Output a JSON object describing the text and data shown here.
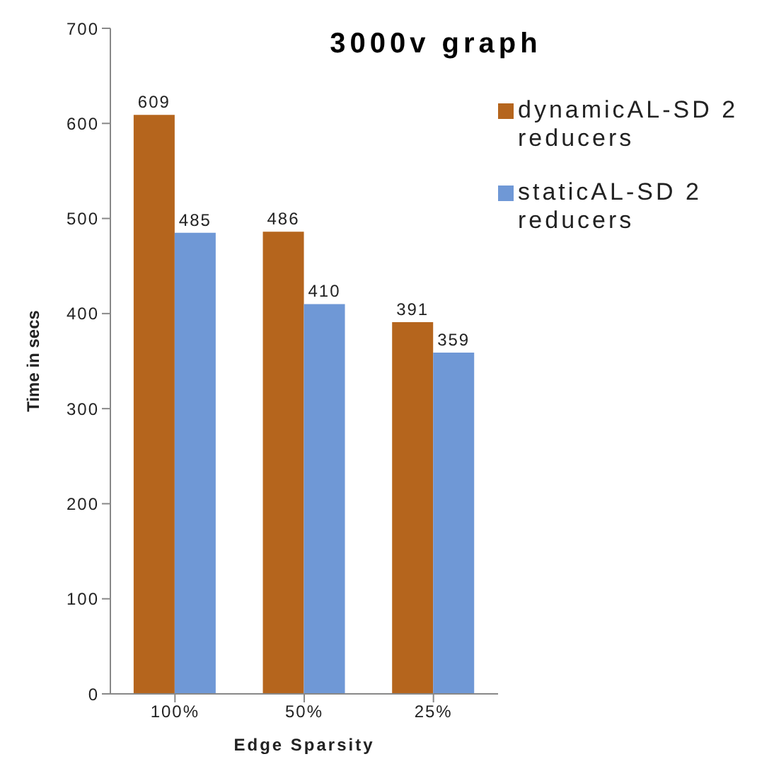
{
  "chart_data": {
    "type": "bar",
    "title": "3000v graph",
    "xlabel": "Edge Sparsity",
    "ylabel": "Time in secs",
    "categories": [
      "100%",
      "50%",
      "25%"
    ],
    "series": [
      {
        "name": "dynamicAL-SD 2 reducers",
        "color": "#b5651d",
        "values": [
          609,
          486,
          391
        ]
      },
      {
        "name": "staticAL-SD 2 reducers",
        "color": "#6f98d6",
        "values": [
          485,
          410,
          359
        ]
      }
    ],
    "ylim": [
      0,
      700
    ],
    "yticks": [
      0,
      100,
      200,
      300,
      400,
      500,
      600,
      700
    ],
    "grid": false,
    "legend": "top right",
    "data_labels": true
  }
}
